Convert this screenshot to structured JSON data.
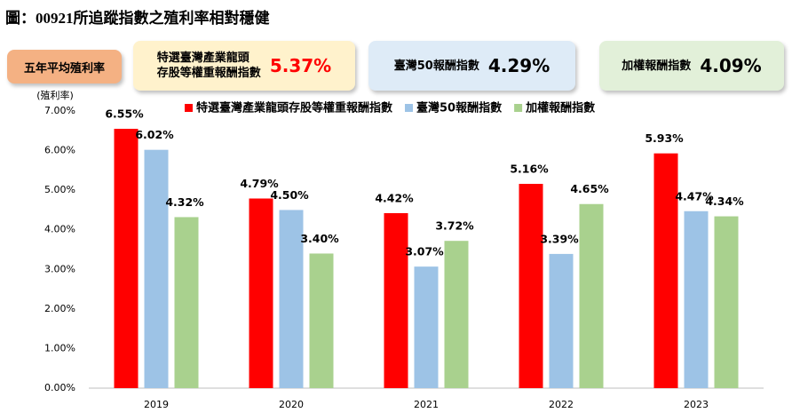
{
  "title": "圖：00921所追蹤指數之殖利率相對穩健",
  "summary": {
    "label": "五年平均殖利率",
    "items": [
      {
        "name": [
          "特選臺灣產業龍頭",
          "存股等權重報酬指數"
        ],
        "value": "5.37%"
      },
      {
        "name": [
          "臺灣50報酬指數"
        ],
        "value": "4.29%"
      },
      {
        "name": [
          "加權報酬指數"
        ],
        "value": "4.09%"
      }
    ]
  },
  "chart_data": {
    "type": "bar",
    "y_label": "(殖利率)",
    "categories": [
      "2019",
      "2020",
      "2021",
      "2022",
      "2023"
    ],
    "series": [
      {
        "name": "特選臺灣產業龍頭存股等權重報酬指數",
        "color": "#ff0000",
        "values": [
          6.55,
          4.79,
          4.42,
          5.16,
          5.93
        ],
        "value_labels": [
          "6.55%",
          "4.79%",
          "4.42%",
          "5.16%",
          "5.93%"
        ]
      },
      {
        "name": "臺灣50報酬指數",
        "color": "#9dc3e6",
        "values": [
          6.02,
          4.5,
          3.07,
          3.39,
          4.47
        ],
        "value_labels": [
          "6.02%",
          "4.50%",
          "3.07%",
          "3.39%",
          "4.47%"
        ]
      },
      {
        "name": "加權報酬指數",
        "color": "#a9d18e",
        "values": [
          4.32,
          3.4,
          3.72,
          4.65,
          4.34
        ],
        "value_labels": [
          "4.32%",
          "3.40%",
          "3.72%",
          "4.65%",
          "4.34%"
        ]
      }
    ],
    "ylim": [
      0,
      7
    ],
    "yticks": [
      {
        "value": 0,
        "label": "0.00%"
      },
      {
        "value": 1,
        "label": "1.00%"
      },
      {
        "value": 2,
        "label": "2.00%"
      },
      {
        "value": 3,
        "label": "3.00%"
      },
      {
        "value": 4,
        "label": "4.00%"
      },
      {
        "value": 5,
        "label": "5.00%"
      },
      {
        "value": 6,
        "label": "6.00%"
      },
      {
        "value": 7,
        "label": "7.00%"
      }
    ],
    "grid": false,
    "legend": "top"
  }
}
